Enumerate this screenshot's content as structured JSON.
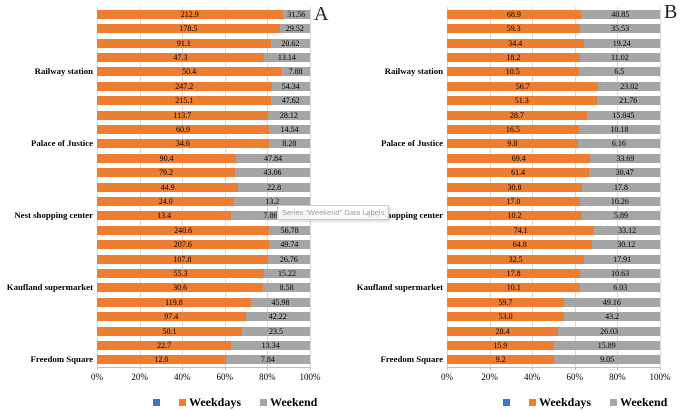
{
  "colors": {
    "weekdays": "#ED7D31",
    "weekend": "#A5A5A5",
    "unnamed_series": "#4472C4",
    "gridline": "#d9d9d9",
    "axis": "#bfbfbf"
  },
  "legend": {
    "series": [
      {
        "name": "",
        "color": "#4472C4"
      },
      {
        "name": "Weekdays",
        "color": "#ED7D31"
      },
      {
        "name": "Weekend",
        "color": "#A5A5A5"
      }
    ]
  },
  "tooltip": {
    "text": "Series \"Weekend\" Data Labels"
  },
  "chart_data": [
    {
      "type": "bar",
      "variant": "100%-stacked-horizontal",
      "panel_label": "A",
      "categories": [
        "Railway station",
        "Palace of Justice",
        "Nest shopping center",
        "Kaufland supermarket",
        "Freedom Square"
      ],
      "rows_per_category": 5,
      "x_axis": {
        "ticks": [
          "0%",
          "20%",
          "40%",
          "60%",
          "80%",
          "100%"
        ],
        "range": [
          0,
          100
        ],
        "gridlines": true
      },
      "legend_position": "bottom",
      "series": [
        {
          "name": "Weekdays",
          "color": "#ED7D31",
          "labels": [
            "212.9",
            "178.5",
            "91.1",
            "47.3",
            "50.4",
            "247.2",
            "215.1",
            "113.7",
            "60.9",
            "34.6",
            "90.4",
            "79.2",
            "44.9",
            "24.0",
            "13.4",
            "240.6",
            "207.6",
            "107.8",
            "55.3",
            "30.6",
            "119.8",
            "97.4",
            "50.1",
            "22.7",
            "12.0"
          ]
        },
        {
          "name": "Weekend",
          "color": "#A5A5A5",
          "labels": [
            "31.56",
            "29.52",
            "20.62",
            "13.14",
            "7.88",
            "54.34",
            "47.62",
            "28.12",
            "14.54",
            "8.28",
            "47.84",
            "43.06",
            "22.8",
            "13.2",
            "7.86",
            "56.78",
            "49.74",
            "26.76",
            "15.22",
            "8.58",
            "45.98",
            "42.22",
            "23.5",
            "13.34",
            "7.84"
          ]
        }
      ]
    },
    {
      "type": "bar",
      "variant": "100%-stacked-horizontal",
      "panel_label": "B",
      "categories": [
        "Railway station",
        "Palace of Justice",
        "Nest shopping center",
        "Kaufland supermarket",
        "Freedom Square"
      ],
      "rows_per_category": 5,
      "x_axis": {
        "ticks": [
          "0%",
          "20%",
          "40%",
          "60%",
          "80%",
          "100%"
        ],
        "range": [
          0,
          100
        ],
        "gridlines": true
      },
      "legend_position": "bottom",
      "series": [
        {
          "name": "Weekdays",
          "color": "#ED7D31",
          "labels": [
            "68.9",
            "59.3",
            "34.4",
            "18.2",
            "10.5",
            "56.7",
            "51.3",
            "28.7",
            "16.5",
            "9.8",
            "69.4",
            "61.4",
            "30.8",
            "17.0",
            "10.2",
            "74.1",
            "64.8",
            "32.5",
            "17.8",
            "10.1",
            "59.7",
            "53.0",
            "28.4",
            "15.9",
            "9.2"
          ]
        },
        {
          "name": "Weekend",
          "color": "#A5A5A5",
          "labels": [
            "40.85",
            "35.53",
            "19.24",
            "11.02",
            "6.5",
            "23.02",
            "21.76",
            "15.045",
            "10.18",
            "6.16",
            "33.69",
            "30.47",
            "17.8",
            "10.26",
            "5.89",
            "33.12",
            "30.12",
            "17.91",
            "10.63",
            "6.03",
            "49.16",
            "43.2",
            "26.03",
            "15.89",
            "9.05"
          ]
        }
      ]
    }
  ]
}
